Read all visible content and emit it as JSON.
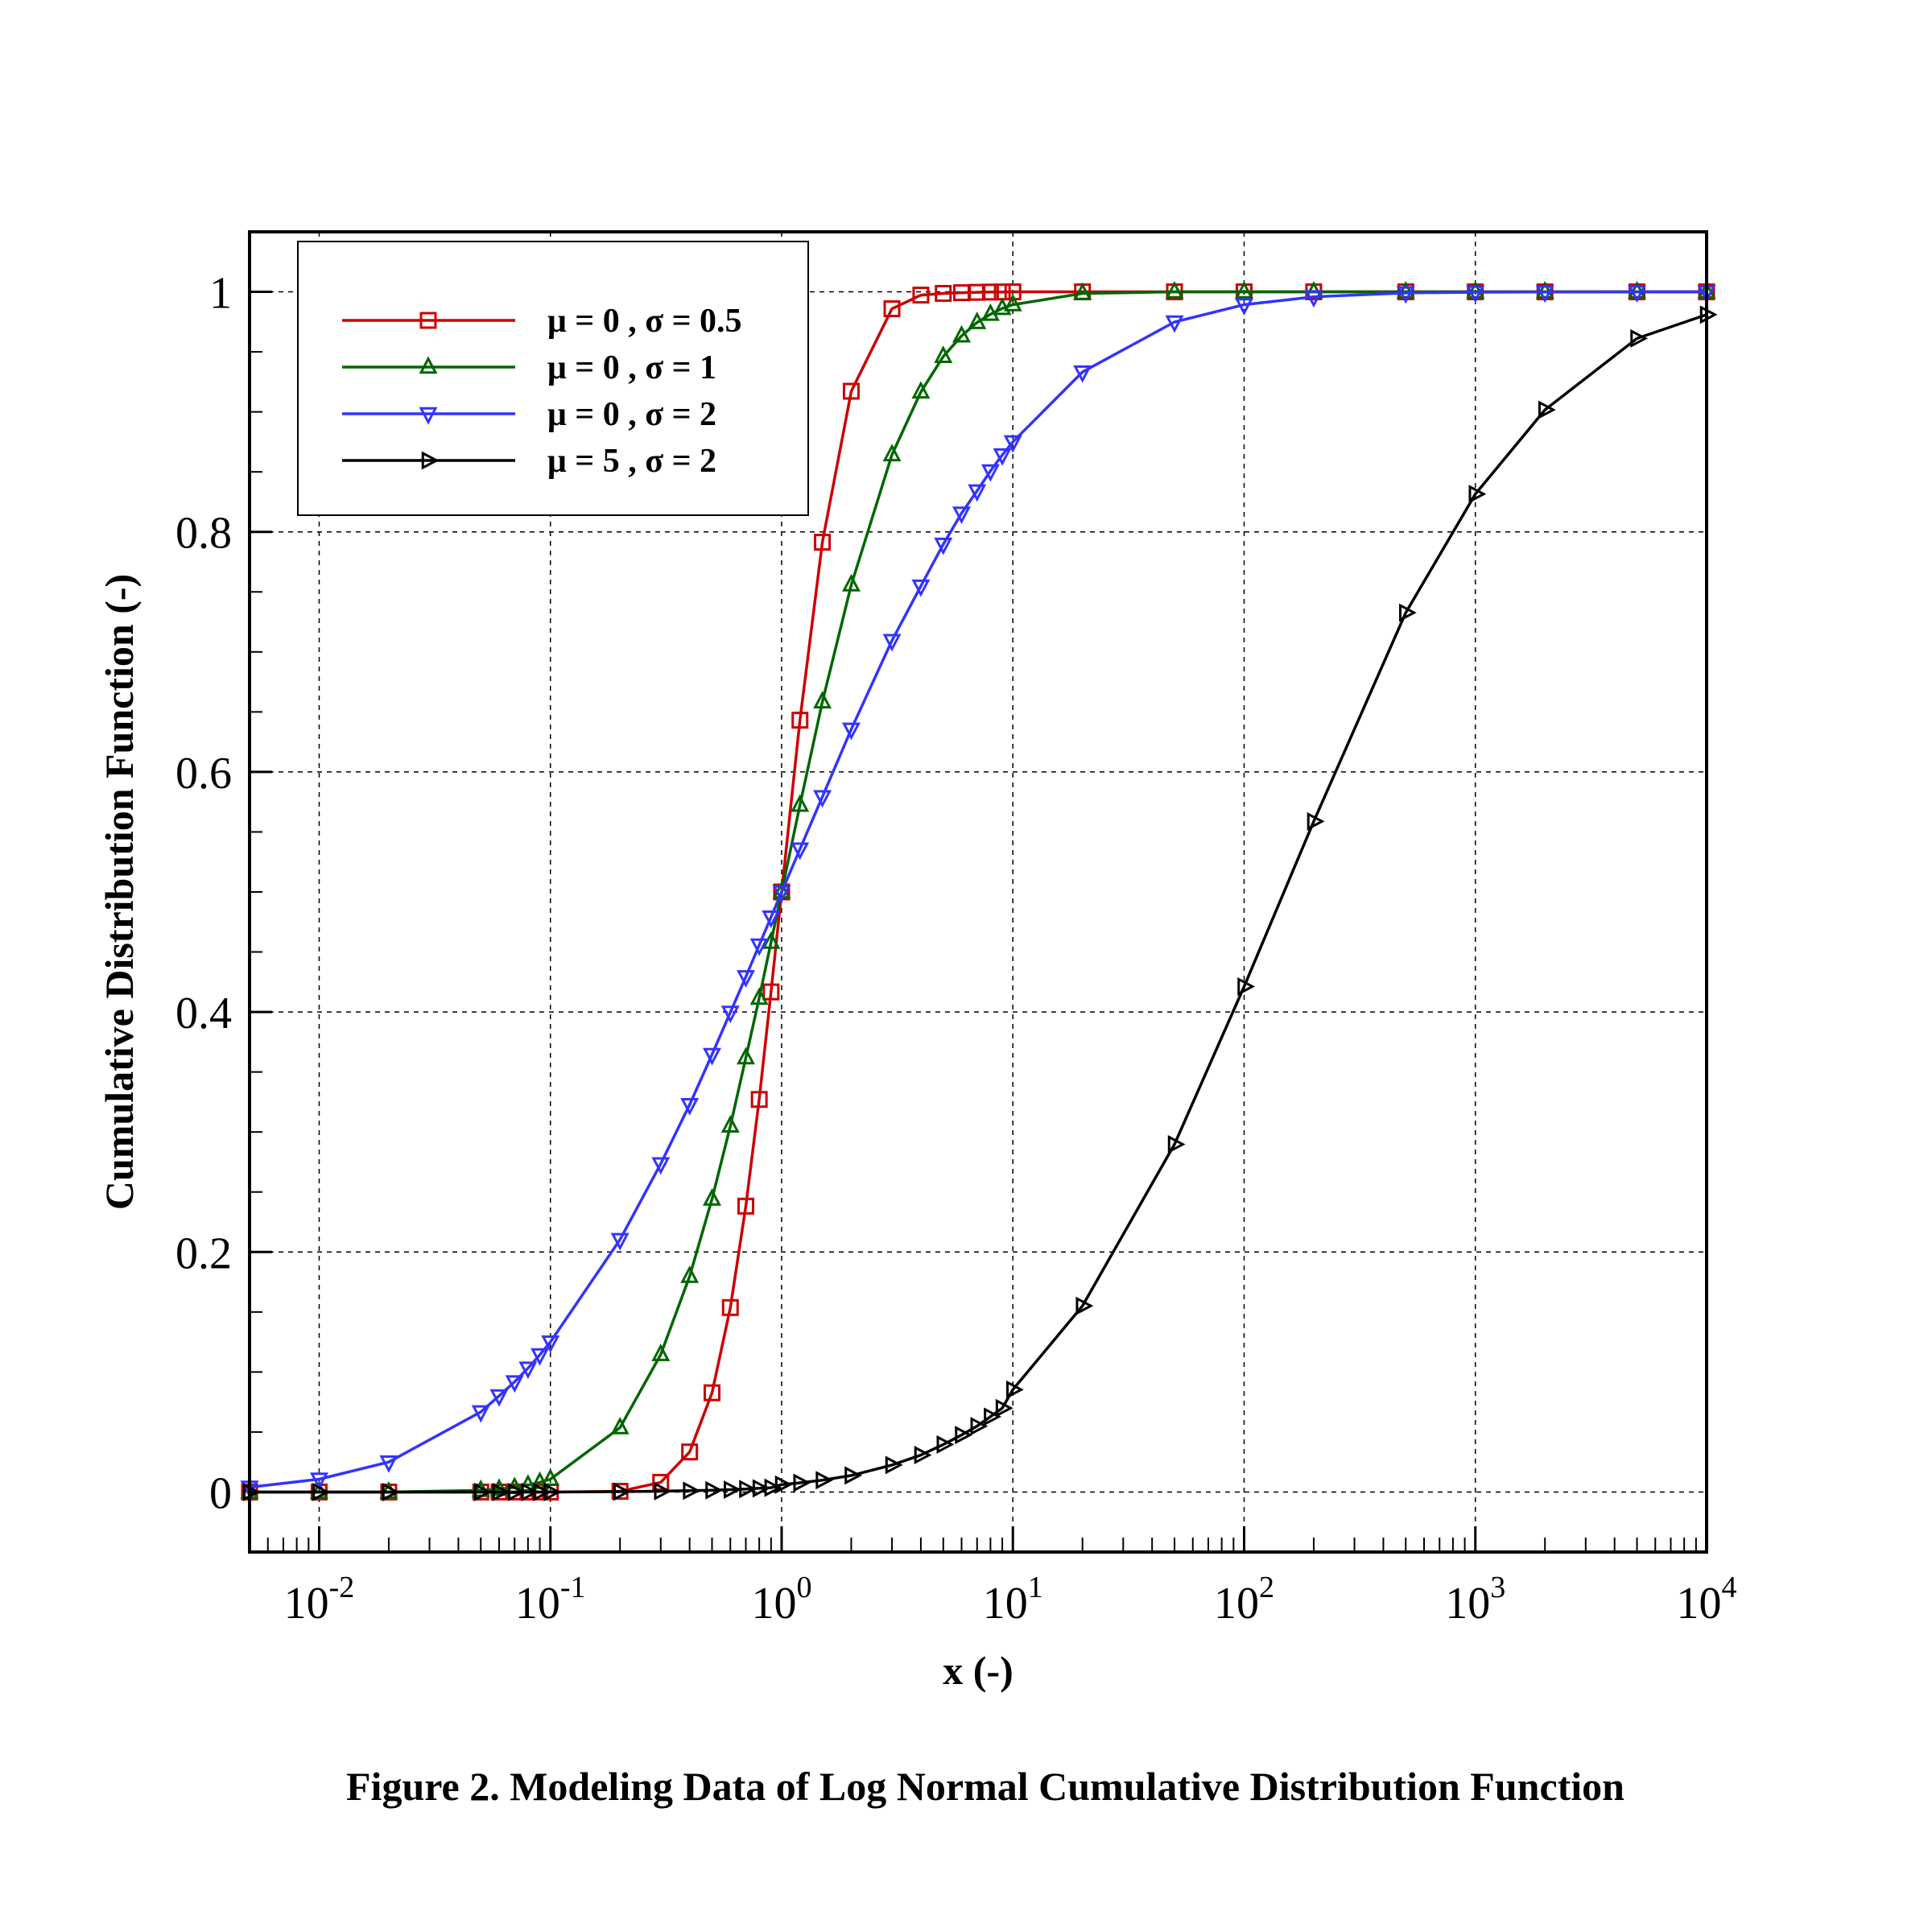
{
  "chart_data": {
    "type": "line",
    "xscale": "log",
    "xlim": [
      0.005,
      10000
    ],
    "ylim": [
      -0.05,
      1.05
    ],
    "xlabel": "x (-)",
    "ylabel": "Cumulative Distribution Function (-)",
    "caption": "Figure 2. Modeling Data of Log Normal Cumulative Distribution Function",
    "grid": true,
    "legend_position": "top-left",
    "x_ticks": [
      {
        "value": 0.01,
        "base": "10",
        "exp": "-2"
      },
      {
        "value": 0.1,
        "base": "10",
        "exp": "-1"
      },
      {
        "value": 1,
        "base": "10",
        "exp": "0"
      },
      {
        "value": 10,
        "base": "10",
        "exp": "1"
      },
      {
        "value": 100,
        "base": "10",
        "exp": "2"
      },
      {
        "value": 1000,
        "base": "10",
        "exp": "3"
      },
      {
        "value": 10000,
        "base": "10",
        "exp": "4"
      }
    ],
    "y_ticks": [
      {
        "value": 0,
        "label": "0"
      },
      {
        "value": 0.2,
        "label": "0.2"
      },
      {
        "value": 0.4,
        "label": "0.4"
      },
      {
        "value": 0.6,
        "label": "0.6"
      },
      {
        "value": 0.8,
        "label": "0.8"
      },
      {
        "value": 1,
        "label": "1"
      }
    ],
    "series": [
      {
        "name": "μ = 0 , σ = 0.5",
        "color": "#cc0000",
        "marker": "square",
        "x": [
          0.005,
          0.01,
          0.02,
          0.05,
          0.06,
          0.07,
          0.08,
          0.09,
          0.1,
          0.2,
          0.3,
          0.4,
          0.5,
          0.6,
          0.7,
          0.8,
          0.9,
          1,
          1.2,
          1.5,
          2,
          3,
          4,
          5,
          6,
          7,
          8,
          9,
          10,
          20,
          50,
          100,
          200,
          500,
          1000,
          2000,
          5000,
          10000
        ],
        "y": [
          0,
          0,
          0,
          0,
          0,
          0,
          0,
          0,
          0,
          0.0006,
          0.0081,
          0.0334,
          0.0827,
          0.1537,
          0.2382,
          0.3271,
          0.4167,
          0.5,
          0.6431,
          0.7914,
          0.9172,
          0.9859,
          0.9973,
          0.9987,
          0.9993,
          0.9996,
          0.9998,
          0.9999,
          1,
          1,
          1,
          1,
          1,
          1,
          1,
          1,
          1,
          1
        ]
      },
      {
        "name": "μ = 0 , σ = 1",
        "color": "#006600",
        "marker": "triangle-up",
        "x": [
          0.005,
          0.01,
          0.02,
          0.05,
          0.06,
          0.07,
          0.08,
          0.09,
          0.1,
          0.2,
          0.3,
          0.4,
          0.5,
          0.6,
          0.7,
          0.8,
          0.9,
          1,
          1.2,
          1.5,
          2,
          3,
          4,
          5,
          6,
          7,
          8,
          9,
          10,
          20,
          50,
          100,
          200,
          500,
          1000,
          2000,
          5000,
          10000
        ],
        "y": [
          0,
          0,
          0,
          0.0014,
          0.0024,
          0.0038,
          0.0058,
          0.0081,
          0.0107,
          0.0536,
          0.1146,
          0.1797,
          0.2441,
          0.305,
          0.3618,
          0.4115,
          0.4581,
          0.5,
          0.5723,
          0.6584,
          0.7559,
          0.8643,
          0.9166,
          0.9462,
          0.9633,
          0.9745,
          0.9813,
          0.9862,
          0.9893,
          0.9987,
          1,
          1,
          1,
          1,
          1,
          1,
          1,
          1
        ]
      },
      {
        "name": "μ = 0 , σ = 2",
        "color": "#3333ff",
        "marker": "triangle-down",
        "x": [
          0.005,
          0.01,
          0.02,
          0.05,
          0.06,
          0.07,
          0.08,
          0.09,
          0.1,
          0.2,
          0.3,
          0.4,
          0.5,
          0.6,
          0.7,
          0.8,
          0.9,
          1,
          1.2,
          1.5,
          2,
          3,
          4,
          5,
          6,
          7,
          8,
          9,
          10,
          20,
          50,
          100,
          200,
          500,
          1000,
          2000,
          5000,
          10000
        ],
        "y": [
          0.004,
          0.0107,
          0.025,
          0.0668,
          0.0801,
          0.0918,
          0.1032,
          0.1143,
          0.125,
          0.2103,
          0.2735,
          0.3228,
          0.3645,
          0.3997,
          0.4293,
          0.4557,
          0.479,
          0.5,
          0.5357,
          0.5793,
          0.6356,
          0.7094,
          0.7548,
          0.7897,
          0.8156,
          0.8341,
          0.8508,
          0.8641,
          0.875,
          0.9332,
          0.9749,
          0.9893,
          0.9959,
          0.9991,
          0.9997,
          0.9999,
          1,
          1
        ]
      },
      {
        "name": "μ = 5 , σ = 2",
        "color": "#000000",
        "marker": "triangle-right",
        "x": [
          0.005,
          0.01,
          0.02,
          0.05,
          0.06,
          0.07,
          0.08,
          0.09,
          0.1,
          0.2,
          0.3,
          0.4,
          0.5,
          0.6,
          0.7,
          0.8,
          0.9,
          1,
          1.2,
          1.5,
          2,
          3,
          4,
          5,
          6,
          7,
          8,
          9,
          10,
          20,
          50,
          100,
          200,
          500,
          1000,
          2000,
          5000,
          10000
        ],
        "y": [
          0,
          0,
          0,
          0,
          0,
          0,
          0,
          0,
          0,
          0.0003,
          0.0007,
          0.0011,
          0.0015,
          0.002,
          0.0025,
          0.0031,
          0.0036,
          0.0062,
          0.0077,
          0.0099,
          0.0138,
          0.0225,
          0.0308,
          0.0396,
          0.0475,
          0.0549,
          0.0628,
          0.0699,
          0.0853,
          0.1551,
          0.2897,
          0.4212,
          0.5588,
          0.7327,
          0.8315,
          0.9017,
          0.9612,
          0.981
        ]
      }
    ]
  }
}
